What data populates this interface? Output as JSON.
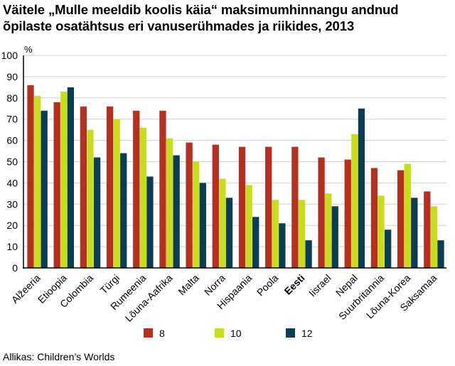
{
  "title_lines": [
    "Väitele „Mulle meeldib koolis käia“ maksimumhinnangu andnud",
    "õpilaste osatähtsus eri vanuserühmades ja riikides, 2013"
  ],
  "source": "Allikas: Children’s Worlds",
  "colors": {
    "8": "#b5301e",
    "10": "#c8dc1e",
    "12": "#0c3d57",
    "axis": "#000000",
    "grid": "#cfcfcf"
  },
  "chart_data": {
    "type": "bar",
    "ylabel": "%",
    "ylim": [
      0,
      100
    ],
    "yticks": [
      0,
      10,
      20,
      30,
      40,
      50,
      60,
      70,
      80,
      90,
      100
    ],
    "grid": true,
    "legend_position": "bottom",
    "highlight_category": "Eesti",
    "categories": [
      "Alžeeria",
      "Etioopia",
      "Colombia",
      "Türgi",
      "Rumeenia",
      "Lõuna-Aafrika",
      "Malta",
      "Norra",
      "Hispaania",
      "Poola",
      "Eesti",
      "Iisrael",
      "Nepal",
      "Suurbritannia",
      "Lõuna-Korea",
      "Saksamaa"
    ],
    "series": [
      {
        "name": "8",
        "color": "#b5301e",
        "values": [
          86,
          78,
          76,
          76,
          74,
          74,
          59,
          58,
          57,
          57,
          57,
          52,
          51,
          47,
          46,
          36
        ]
      },
      {
        "name": "10",
        "color": "#c8dc1e",
        "values": [
          81,
          83,
          65,
          70,
          66,
          61,
          50,
          42,
          39,
          32,
          32,
          35,
          63,
          34,
          49,
          29
        ]
      },
      {
        "name": "12",
        "color": "#0c3d57",
        "values": [
          74,
          85,
          52,
          54,
          43,
          53,
          40,
          33,
          24,
          21,
          13,
          29,
          75,
          18,
          33,
          13
        ]
      }
    ]
  }
}
